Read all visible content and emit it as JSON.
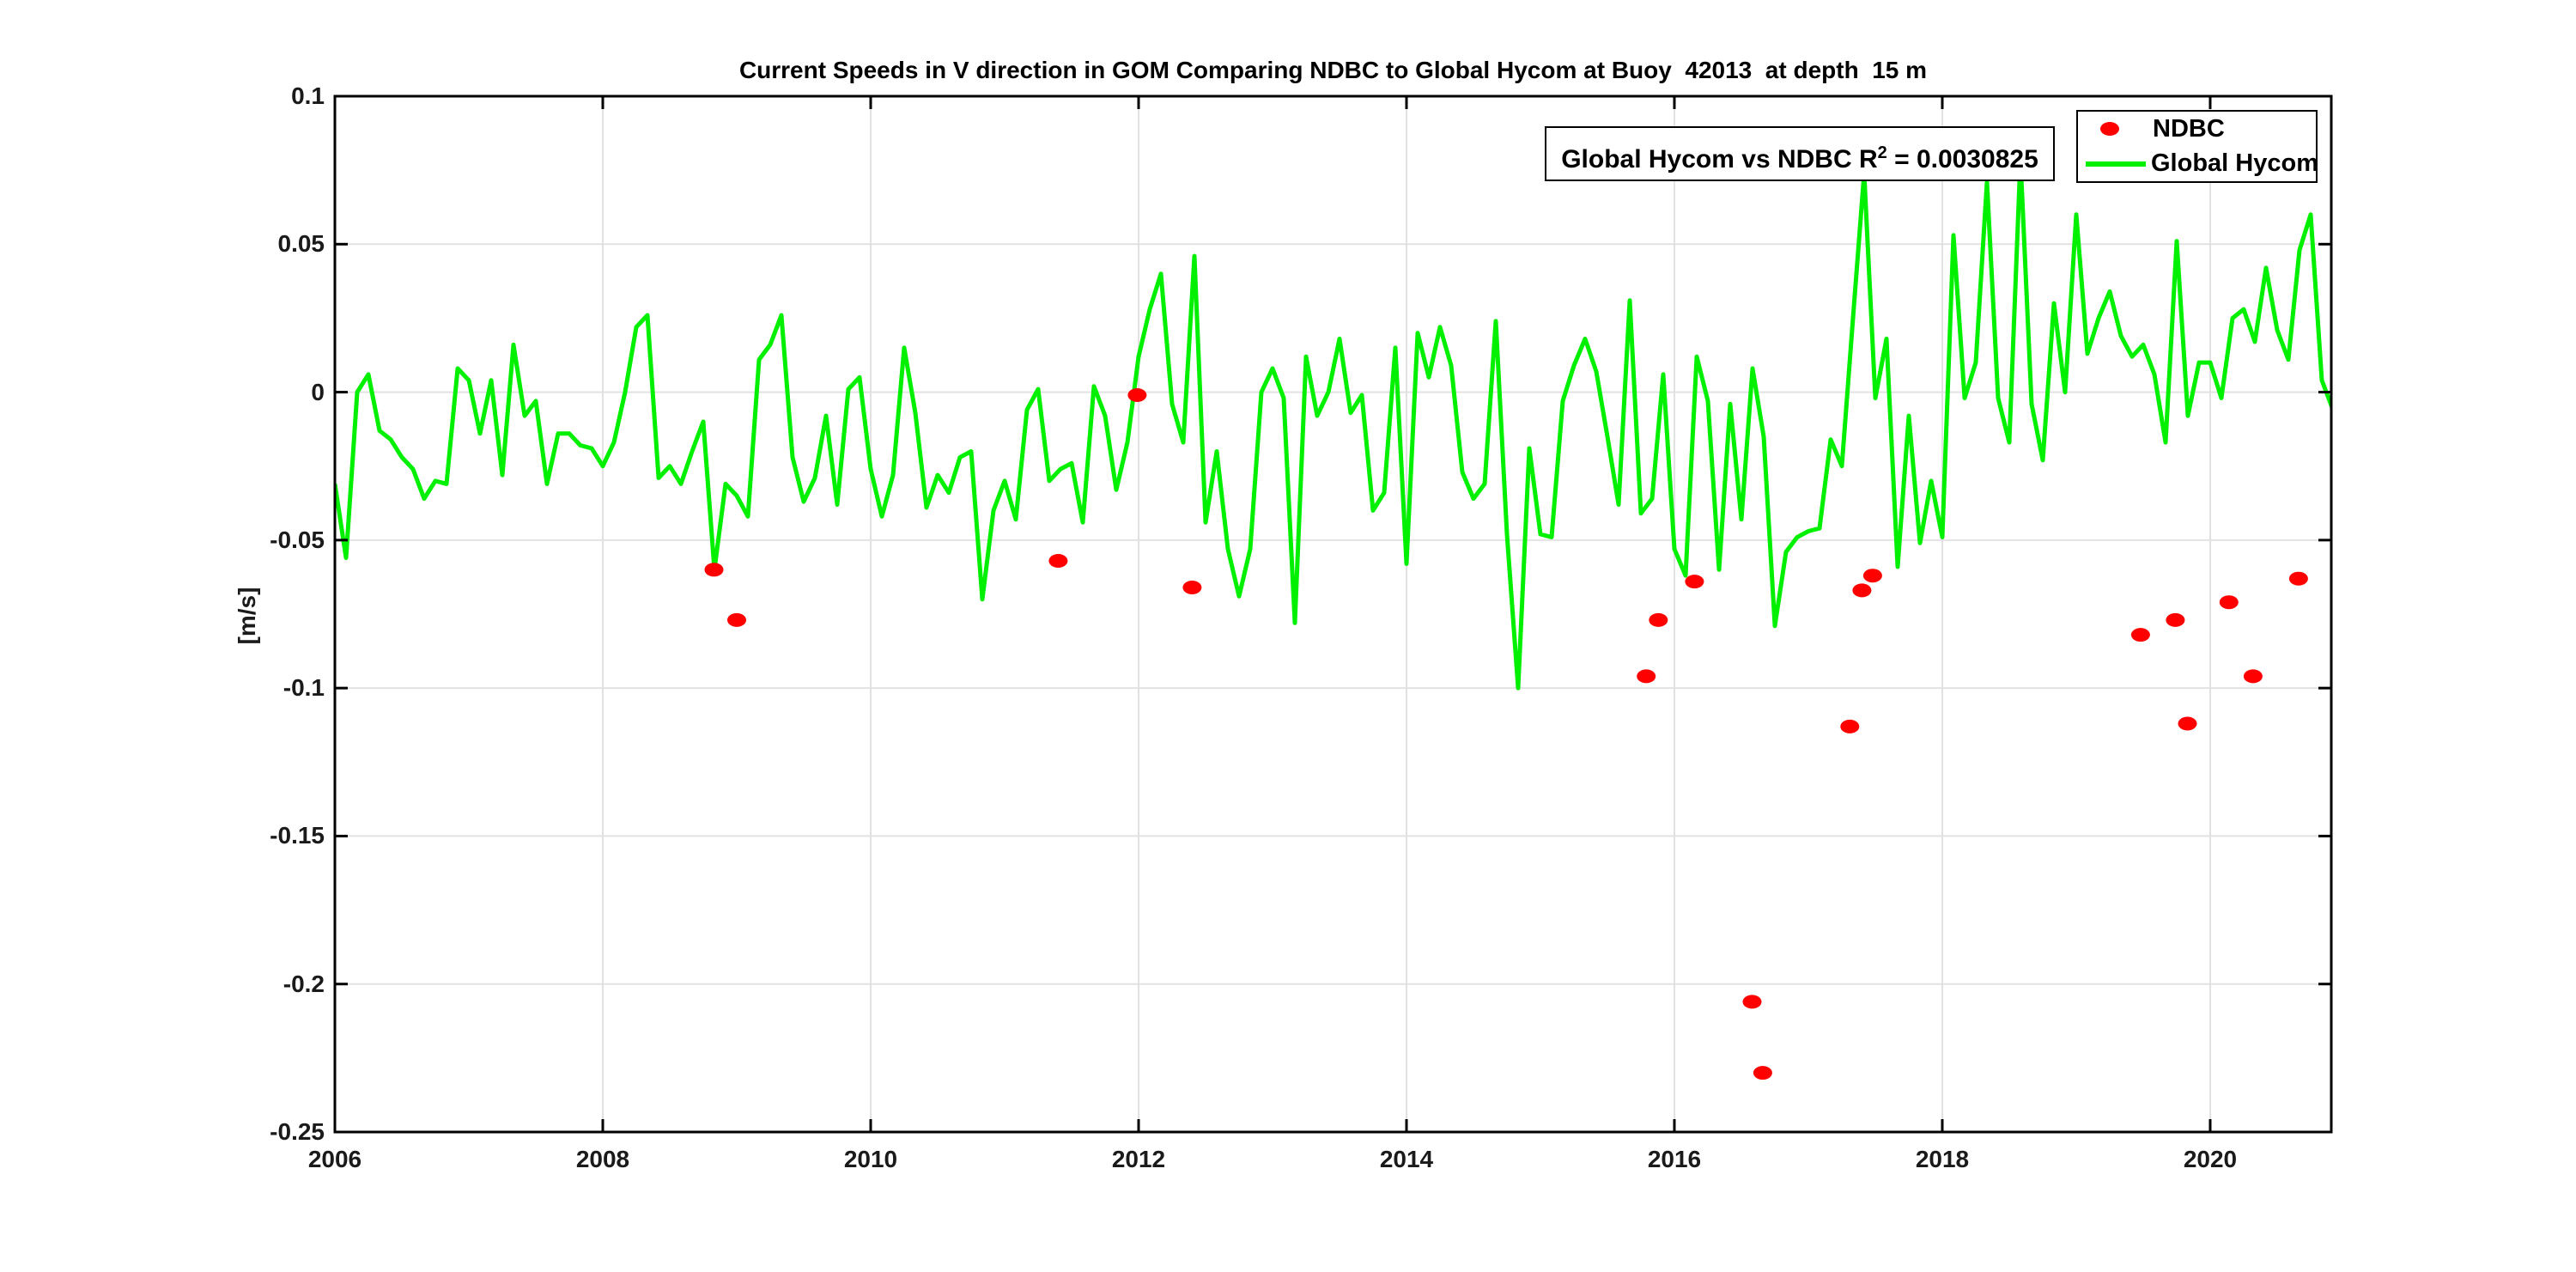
{
  "title": "Current Speeds in V direction in GOM Comparing NDBC to Global Hycom at Buoy  42013  at depth  15 m",
  "annotation": {
    "prefix": "Global Hycom vs NDBC R",
    "superscript": "2",
    "suffix": " = 0.0030825"
  },
  "legend": {
    "items": [
      {
        "label": "NDBC",
        "marker": "dot",
        "color": "#ff0000"
      },
      {
        "label": "Global Hycom",
        "marker": "line",
        "color": "#00f000"
      }
    ]
  },
  "colors": {
    "ndbc": "#ff0000",
    "hycom": "#00f000",
    "grid": "#e2e2e2",
    "axis": "#000000",
    "tick_text": "#1a1a1a"
  },
  "chart_data": {
    "type": "line",
    "title": "Current Speeds in V direction in GOM Comparing NDBC to Global Hycom at Buoy  42013  at depth  15 m",
    "xlabel": "",
    "ylabel": "[m/s]",
    "xlim": [
      2006,
      2020.904
    ],
    "ylim": [
      -0.25,
      0.1
    ],
    "grid": true,
    "legend_position": "top-right",
    "annotation_text": "Global Hycom vs NDBC R^2 = 0.0030825",
    "xticks": {
      "values": [
        2006,
        2008,
        2010,
        2012,
        2014,
        2016,
        2018,
        2020
      ],
      "labels": [
        "2006",
        "2008",
        "2010",
        "2012",
        "2014",
        "2016",
        "2018",
        "2020"
      ]
    },
    "yticks": {
      "values": [
        0.1,
        0.05,
        0,
        -0.05,
        -0.1,
        -0.15,
        -0.2,
        -0.25
      ],
      "labels": [
        "0.1",
        "0.05",
        "0",
        "-0.05",
        "-0.1",
        "-0.15",
        "-0.2",
        "-0.25"
      ]
    },
    "series": [
      {
        "name": "Global Hycom",
        "type": "line",
        "color": "#00f000",
        "x_start": 2006.0,
        "x_step": 0.0833333,
        "values": [
          -0.031,
          -0.056,
          0.0,
          0.006,
          -0.013,
          -0.016,
          -0.022,
          -0.026,
          -0.036,
          -0.03,
          -0.031,
          0.008,
          0.004,
          -0.014,
          0.004,
          -0.028,
          0.016,
          -0.008,
          -0.003,
          -0.031,
          -0.014,
          -0.014,
          -0.018,
          -0.019,
          -0.025,
          -0.017,
          0.0,
          0.022,
          0.026,
          -0.029,
          -0.025,
          -0.031,
          -0.02,
          -0.01,
          -0.06,
          -0.031,
          -0.035,
          -0.042,
          0.011,
          0.016,
          0.026,
          -0.022,
          -0.037,
          -0.029,
          -0.008,
          -0.038,
          0.001,
          0.005,
          -0.026,
          -0.042,
          -0.028,
          0.015,
          -0.007,
          -0.039,
          -0.028,
          -0.034,
          -0.022,
          -0.02,
          -0.07,
          -0.04,
          -0.03,
          -0.043,
          -0.006,
          0.001,
          -0.03,
          -0.026,
          -0.024,
          -0.044,
          0.002,
          -0.008,
          -0.033,
          -0.017,
          0.012,
          0.028,
          0.04,
          -0.004,
          -0.017,
          0.046,
          -0.044,
          -0.02,
          -0.053,
          -0.069,
          -0.053,
          0.0,
          0.008,
          -0.002,
          -0.078,
          0.012,
          -0.008,
          0.0,
          0.018,
          -0.007,
          -0.001,
          -0.04,
          -0.034,
          0.015,
          -0.058,
          0.02,
          0.005,
          0.022,
          0.009,
          -0.027,
          -0.036,
          -0.031,
          0.024,
          -0.048,
          -0.1,
          -0.019,
          -0.048,
          -0.049,
          -0.003,
          0.009,
          0.018,
          0.007,
          -0.015,
          -0.038,
          0.031,
          -0.041,
          -0.036,
          0.006,
          -0.053,
          -0.062,
          0.012,
          -0.003,
          -0.06,
          -0.004,
          -0.043,
          0.008,
          -0.015,
          -0.079,
          -0.054,
          -0.049,
          -0.047,
          -0.046,
          -0.016,
          -0.025,
          0.025,
          0.074,
          -0.002,
          0.018,
          -0.059,
          -0.008,
          -0.051,
          -0.03,
          -0.049,
          0.053,
          -0.002,
          0.01,
          0.071,
          -0.002,
          -0.017,
          0.079,
          -0.004,
          -0.023,
          0.03,
          0.0,
          0.06,
          0.013,
          0.025,
          0.034,
          0.019,
          0.012,
          0.016,
          0.006,
          -0.017,
          0.051,
          -0.008,
          0.01,
          0.01,
          -0.002,
          0.025,
          0.028,
          0.017,
          0.042,
          0.021,
          0.011,
          0.048,
          0.06,
          0.004,
          -0.006
        ]
      },
      {
        "name": "NDBC",
        "type": "scatter",
        "color": "#ff0000",
        "points": [
          [
            2008.83,
            -0.06
          ],
          [
            2009.0,
            -0.077
          ],
          [
            2011.4,
            -0.057
          ],
          [
            2011.99,
            -0.001
          ],
          [
            2012.4,
            -0.066
          ],
          [
            2015.79,
            -0.096
          ],
          [
            2015.88,
            -0.077
          ],
          [
            2016.15,
            -0.064
          ],
          [
            2016.58,
            -0.206
          ],
          [
            2016.66,
            -0.23
          ],
          [
            2017.31,
            -0.113
          ],
          [
            2017.4,
            -0.067
          ],
          [
            2017.48,
            -0.062
          ],
          [
            2019.48,
            -0.082
          ],
          [
            2019.74,
            -0.077
          ],
          [
            2019.83,
            -0.112
          ],
          [
            2020.14,
            -0.071
          ],
          [
            2020.32,
            -0.096
          ],
          [
            2020.66,
            -0.063
          ]
        ]
      }
    ]
  }
}
